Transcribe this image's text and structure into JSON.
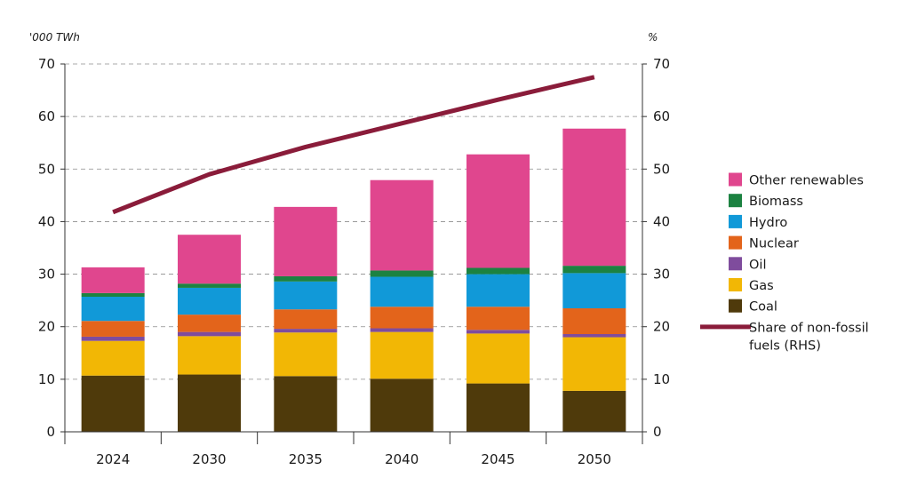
{
  "chart_data": {
    "type": "bar",
    "stacked": true,
    "categories": [
      "2024",
      "2030",
      "2035",
      "2040",
      "2045",
      "2050"
    ],
    "y_left": {
      "unit": "'000 TWh",
      "ylim": [
        0,
        70
      ],
      "ticks": [
        "0",
        "10",
        "20",
        "30",
        "40",
        "50",
        "60",
        "70"
      ]
    },
    "y_right": {
      "unit": "%",
      "ylim": [
        0,
        70
      ],
      "ticks": [
        "0",
        "10",
        "20",
        "30",
        "40",
        "50",
        "60",
        "70"
      ]
    },
    "grid": "horizontal-dashed",
    "legend_position": "right",
    "series": [
      {
        "name": "Coal",
        "color": "#4f3a0b",
        "values": [
          10.7,
          10.9,
          10.6,
          10.1,
          9.2,
          7.8
        ]
      },
      {
        "name": "Gas",
        "color": "#f2b705",
        "values": [
          6.6,
          7.3,
          8.3,
          8.9,
          9.5,
          10.2
        ]
      },
      {
        "name": "Oil",
        "color": "#7f4c9d",
        "values": [
          0.8,
          0.8,
          0.7,
          0.7,
          0.7,
          0.6
        ]
      },
      {
        "name": "Nuclear",
        "color": "#e3641b",
        "values": [
          3.0,
          3.3,
          3.7,
          4.1,
          4.4,
          4.9
        ]
      },
      {
        "name": "Hydro",
        "color": "#1199d8",
        "values": [
          4.6,
          5.1,
          5.3,
          5.7,
          6.2,
          6.7
        ]
      },
      {
        "name": "Biomass",
        "color": "#1c8241",
        "values": [
          0.7,
          0.8,
          1.0,
          1.2,
          1.2,
          1.4
        ]
      },
      {
        "name": "Other renewables",
        "color": "#e0468e",
        "values": [
          4.9,
          9.3,
          13.2,
          17.2,
          21.6,
          26.1
        ]
      }
    ],
    "line": {
      "name": "Share of non-fossil fuels (RHS)",
      "color": "#8a1c3a",
      "axis": "right",
      "values": [
        41.8,
        49.0,
        54.2,
        58.7,
        63.2,
        67.5
      ]
    },
    "legend_order": [
      "Other renewables",
      "Biomass",
      "Hydro",
      "Nuclear",
      "Oil",
      "Gas",
      "Coal",
      "Share of non-fossil fuels (RHS)"
    ]
  }
}
